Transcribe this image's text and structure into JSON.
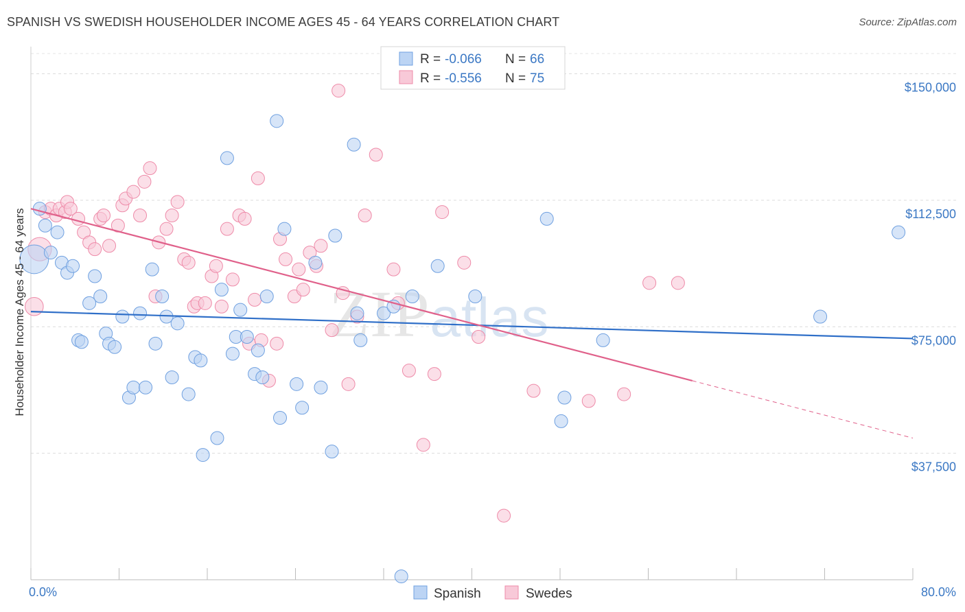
{
  "header": {
    "title": "SPANISH VS SWEDISH HOUSEHOLDER INCOME AGES 45 - 64 YEARS CORRELATION CHART",
    "source": "Source: ZipAtlas.com"
  },
  "colors": {
    "spanish": "#6fa0e0",
    "spanish_fill": "#bcd4f4",
    "swedes": "#ee8aa8",
    "swedes_fill": "#f8c9d8",
    "spanish_line": "#2f6fc8",
    "swedes_line": "#e0608a",
    "tick_text": "#3b78c4"
  },
  "legend": {
    "rows": [
      {
        "r_label": "R =",
        "r_value": "-0.066",
        "n_label": "N =",
        "n_value": "66"
      },
      {
        "r_label": "R =",
        "r_value": "-0.556",
        "n_label": "N =",
        "n_value": "75"
      }
    ],
    "bottom": [
      "Spanish",
      "Swedes"
    ]
  },
  "chart_data": {
    "type": "scatter",
    "ylabel": "Householder Income Ages 45 - 64 years",
    "x_ticks": [
      "0.0%",
      "80.0%"
    ],
    "y_ticks": [
      "$150,000",
      "$112,500",
      "$75,000",
      "$37,500"
    ],
    "xlim": [
      0,
      80
    ],
    "ylim": [
      0,
      156000
    ],
    "grid": true,
    "legend_position": "top-center",
    "watermark": "ZIPatlas",
    "series": [
      {
        "name": "Spanish",
        "trend": {
          "x": [
            0,
            80
          ],
          "y": [
            79500,
            71500
          ]
        },
        "points": [
          [
            0.3,
            95000,
            22
          ],
          [
            0.8,
            110000,
            10
          ],
          [
            1.3,
            105000,
            10
          ],
          [
            1.8,
            97000,
            10
          ],
          [
            2.4,
            103000,
            10
          ],
          [
            2.8,
            94000,
            10
          ],
          [
            3.3,
            91000,
            10
          ],
          [
            3.8,
            93000,
            10
          ],
          [
            4.3,
            71000,
            10
          ],
          [
            4.6,
            70500,
            10
          ],
          [
            5.3,
            82000,
            10
          ],
          [
            5.8,
            90000,
            10
          ],
          [
            6.3,
            84000,
            10
          ],
          [
            6.8,
            73000,
            10
          ],
          [
            7.1,
            70000,
            10
          ],
          [
            7.6,
            69000,
            10
          ],
          [
            8.3,
            78000,
            10
          ],
          [
            8.9,
            54000,
            10
          ],
          [
            9.3,
            57000,
            10
          ],
          [
            9.9,
            79000,
            10
          ],
          [
            10.4,
            57000,
            10
          ],
          [
            11.0,
            92000,
            10
          ],
          [
            11.3,
            70000,
            10
          ],
          [
            11.9,
            84000,
            10
          ],
          [
            12.3,
            78000,
            10
          ],
          [
            12.8,
            60000,
            10
          ],
          [
            13.3,
            76000,
            10
          ],
          [
            14.3,
            55000,
            10
          ],
          [
            14.9,
            66000,
            10
          ],
          [
            15.4,
            65000,
            10
          ],
          [
            15.6,
            37000,
            10
          ],
          [
            16.9,
            42000,
            10
          ],
          [
            17.3,
            86000,
            10
          ],
          [
            17.8,
            125000,
            10
          ],
          [
            18.3,
            67000,
            10
          ],
          [
            18.6,
            72000,
            10
          ],
          [
            19.0,
            80000,
            10
          ],
          [
            19.6,
            72000,
            10
          ],
          [
            20.3,
            61000,
            10
          ],
          [
            20.6,
            68000,
            10
          ],
          [
            21.0,
            60000,
            10
          ],
          [
            21.4,
            84000,
            10
          ],
          [
            22.3,
            136000,
            10
          ],
          [
            22.6,
            48000,
            10
          ],
          [
            23.0,
            104000,
            10
          ],
          [
            24.1,
            58000,
            10
          ],
          [
            24.6,
            51000,
            10
          ],
          [
            25.8,
            94000,
            10
          ],
          [
            26.3,
            57000,
            10
          ],
          [
            27.3,
            38000,
            10
          ],
          [
            27.6,
            102000,
            10
          ],
          [
            29.3,
            129000,
            10
          ],
          [
            29.6,
            79000,
            10
          ],
          [
            29.9,
            71000,
            10
          ],
          [
            32.0,
            79000,
            10
          ],
          [
            32.9,
            81000,
            10
          ],
          [
            33.6,
            1000,
            10
          ],
          [
            34.6,
            84000,
            10
          ],
          [
            36.9,
            93000,
            10
          ],
          [
            40.3,
            84000,
            10
          ],
          [
            46.8,
            107000,
            10
          ],
          [
            48.1,
            47000,
            10
          ],
          [
            48.4,
            54000,
            10
          ],
          [
            51.9,
            71000,
            10
          ],
          [
            71.6,
            78000,
            10
          ],
          [
            78.7,
            103000,
            10
          ]
        ]
      },
      {
        "name": "Swedes",
        "trend": {
          "x": [
            0,
            60
          ],
          "y": [
            110000,
            59000
          ]
        },
        "trend_dashed": {
          "x": [
            60,
            80
          ],
          "y": [
            59000,
            42000
          ]
        },
        "points": [
          [
            0.3,
            81000,
            14
          ],
          [
            0.8,
            98000,
            18
          ],
          [
            1.3,
            109000,
            10
          ],
          [
            1.8,
            110000,
            10
          ],
          [
            2.3,
            108000,
            10
          ],
          [
            2.6,
            110000,
            10
          ],
          [
            3.1,
            109000,
            10
          ],
          [
            3.3,
            112000,
            10
          ],
          [
            3.6,
            110000,
            10
          ],
          [
            4.3,
            107000,
            10
          ],
          [
            4.8,
            103000,
            10
          ],
          [
            5.3,
            100000,
            10
          ],
          [
            5.8,
            98000,
            10
          ],
          [
            6.3,
            107000,
            10
          ],
          [
            6.6,
            108000,
            10
          ],
          [
            7.1,
            99000,
            10
          ],
          [
            7.9,
            105000,
            10
          ],
          [
            8.3,
            111000,
            10
          ],
          [
            8.6,
            113000,
            10
          ],
          [
            9.3,
            115000,
            10
          ],
          [
            9.9,
            108000,
            10
          ],
          [
            10.3,
            118000,
            10
          ],
          [
            10.8,
            122000,
            10
          ],
          [
            11.3,
            84000,
            10
          ],
          [
            11.6,
            100000,
            10
          ],
          [
            12.3,
            104000,
            10
          ],
          [
            12.8,
            108000,
            10
          ],
          [
            13.3,
            112000,
            10
          ],
          [
            13.9,
            95000,
            10
          ],
          [
            14.3,
            94000,
            10
          ],
          [
            14.8,
            81000,
            10
          ],
          [
            15.1,
            82000,
            10
          ],
          [
            15.8,
            82000,
            10
          ],
          [
            16.4,
            90000,
            10
          ],
          [
            16.8,
            93000,
            10
          ],
          [
            17.3,
            81000,
            10
          ],
          [
            17.8,
            104000,
            10
          ],
          [
            18.3,
            89000,
            10
          ],
          [
            18.9,
            108000,
            10
          ],
          [
            19.4,
            107000,
            10
          ],
          [
            19.8,
            70000,
            10
          ],
          [
            20.3,
            83000,
            10
          ],
          [
            20.6,
            119000,
            10
          ],
          [
            20.9,
            71000,
            10
          ],
          [
            21.6,
            59000,
            10
          ],
          [
            22.3,
            70000,
            10
          ],
          [
            22.6,
            101000,
            10
          ],
          [
            23.1,
            95000,
            10
          ],
          [
            23.9,
            84000,
            10
          ],
          [
            24.3,
            92000,
            10
          ],
          [
            24.7,
            86000,
            10
          ],
          [
            25.3,
            97000,
            10
          ],
          [
            25.9,
            93000,
            10
          ],
          [
            26.3,
            99000,
            10
          ],
          [
            27.3,
            74000,
            10
          ],
          [
            27.9,
            145000,
            10
          ],
          [
            28.3,
            85000,
            10
          ],
          [
            28.8,
            58000,
            10
          ],
          [
            29.6,
            78000,
            10
          ],
          [
            30.3,
            108000,
            10
          ],
          [
            31.3,
            126000,
            10
          ],
          [
            32.9,
            92000,
            10
          ],
          [
            33.3,
            82000,
            10
          ],
          [
            34.3,
            62000,
            10
          ],
          [
            35.6,
            40000,
            10
          ],
          [
            36.6,
            61000,
            10
          ],
          [
            37.3,
            109000,
            10
          ],
          [
            39.3,
            94000,
            10
          ],
          [
            40.6,
            72000,
            10
          ],
          [
            42.9,
            19000,
            10
          ],
          [
            45.6,
            56000,
            10
          ],
          [
            50.6,
            53000,
            10
          ],
          [
            53.8,
            55000,
            10
          ],
          [
            56.1,
            88000,
            10
          ],
          [
            58.7,
            88000,
            10
          ]
        ]
      }
    ]
  }
}
